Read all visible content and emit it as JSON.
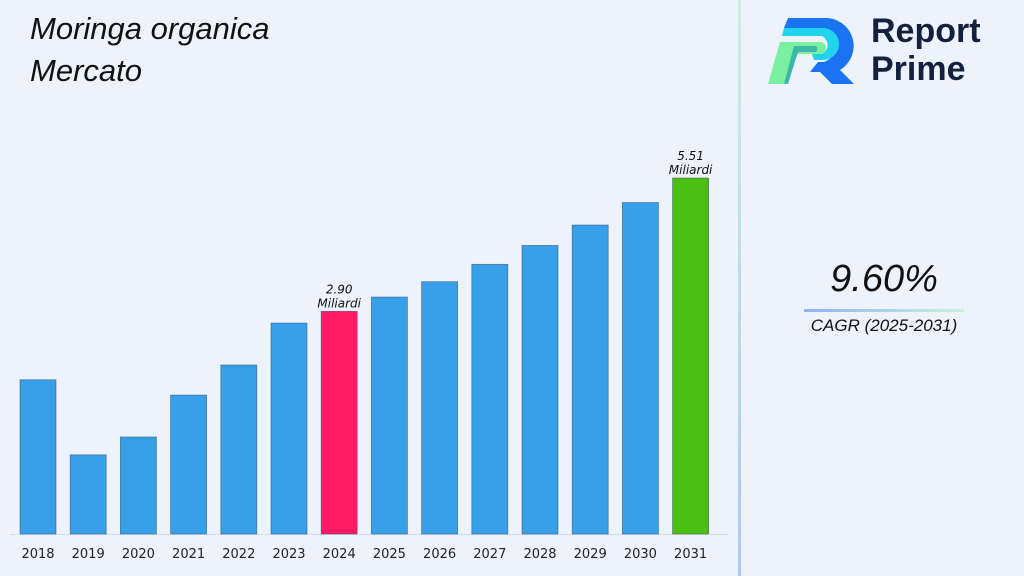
{
  "title_lines": [
    "Moringa organica",
    "Mercato"
  ],
  "brand": {
    "line1": "Report",
    "line2": "Prime"
  },
  "cagr": {
    "value": "9.60%",
    "label": "CAGR (2025-2031)"
  },
  "chart_data": {
    "type": "bar",
    "title": "Moringa organica Mercato",
    "categories": [
      "2018",
      "2019",
      "2020",
      "2021",
      "2022",
      "2023",
      "2024",
      "2025",
      "2026",
      "2027",
      "2028",
      "2029",
      "2030",
      "2031"
    ],
    "values": [
      1.56,
      0.09,
      0.44,
      1.26,
      1.85,
      2.67,
      2.9,
      3.18,
      3.48,
      3.82,
      4.19,
      4.59,
      5.03,
      5.51
    ],
    "unit": "Miliardi",
    "data_labels": [
      {
        "category": "2024",
        "value": "2.90",
        "unit": "Miliardi"
      },
      {
        "category": "2031",
        "value": "5.51",
        "unit": "Miliardi"
      }
    ],
    "colors": {
      "default": "#38a0e8",
      "highlight_2024": "#ff1a66",
      "highlight_2031": "#4cbf12"
    },
    "grid": false,
    "legend": "none"
  }
}
